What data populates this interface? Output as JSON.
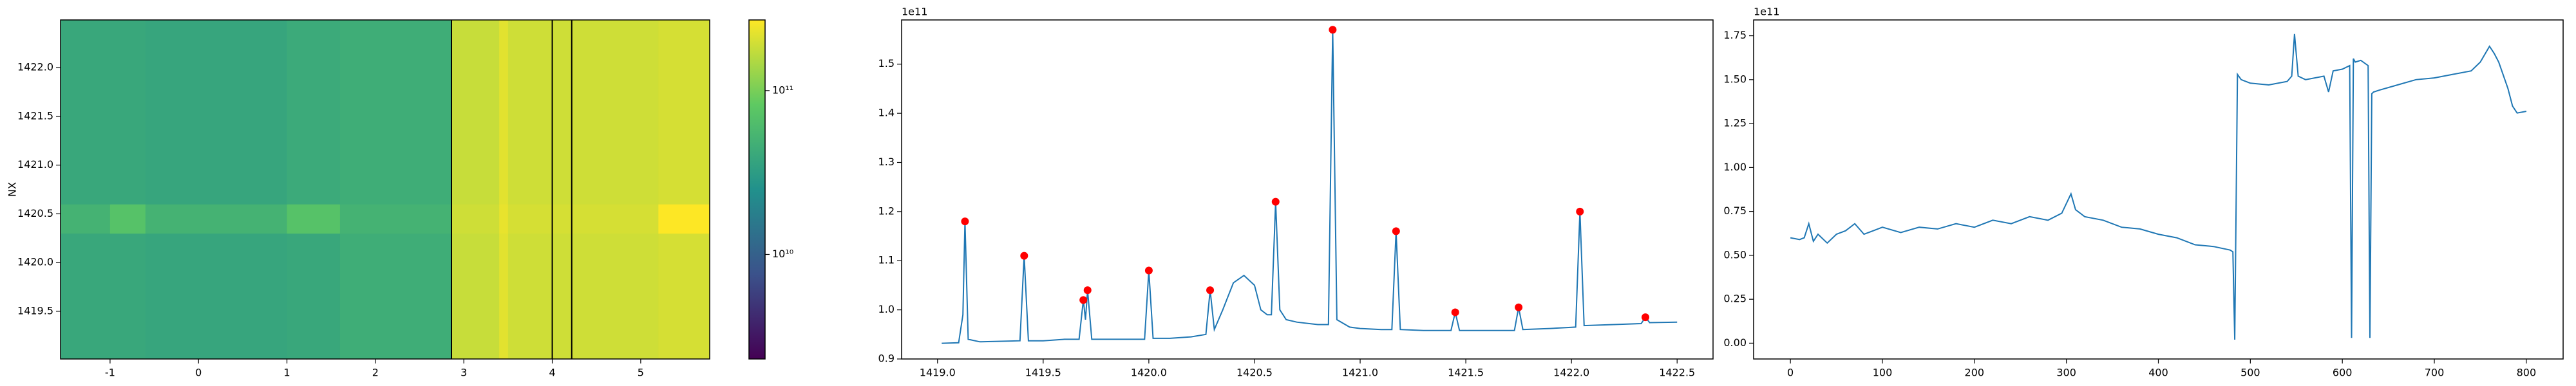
{
  "chart_data": [
    {
      "type": "heatmap",
      "ylabel": "NX",
      "colormap": "viridis",
      "log_color": true,
      "x_edges": [
        -1.56,
        -1.0,
        -0.6,
        1.0,
        1.6,
        2.86,
        3.4,
        3.5,
        5.2,
        5.78
      ],
      "y_edges": [
        1419.01,
        1420.3,
        1420.6,
        1422.49
      ],
      "z": [
        [
          40000000000.0,
          40000000000.0,
          38000000000.0,
          40000000000.0,
          45000000000.0,
          180000000000.0,
          220000000000.0,
          190000000000.0,
          200000000000.0
        ],
        [
          50000000000.0,
          70000000000.0,
          50000000000.0,
          70000000000.0,
          50000000000.0,
          190000000000.0,
          230000000000.0,
          200000000000.0,
          300000000000.0
        ],
        [
          40000000000.0,
          40000000000.0,
          38000000000.0,
          42000000000.0,
          45000000000.0,
          180000000000.0,
          220000000000.0,
          190000000000.0,
          200000000000.0
        ]
      ],
      "vlines": [
        2.86,
        4.0,
        4.22
      ],
      "xlim": [
        -1.56,
        5.78
      ],
      "ylim": [
        1419.01,
        1422.49
      ],
      "xticks": [
        -1,
        0,
        1,
        2,
        3,
        4,
        5
      ],
      "yticks": [
        1419.5,
        {
          "value": 1420.0,
          "label": "1420.0"
        },
        1420.5,
        {
          "value": 1421.0,
          "label": "1421.0"
        },
        1421.5,
        {
          "value": 1422.0,
          "label": "1422.0"
        }
      ],
      "clim": [
        2300000000.0,
        270000000000.0
      ],
      "cticks": [
        {
          "value": 10000000000.0,
          "label": "10¹⁰"
        },
        {
          "value": 100000000000.0,
          "label": "10¹¹"
        }
      ]
    },
    {
      "type": "line",
      "offset_label": "1e11",
      "x": [
        1419.02,
        1419.1,
        1419.12,
        1419.13,
        1419.145,
        1419.2,
        1419.3,
        1419.39,
        1419.41,
        1419.43,
        1419.5,
        1419.6,
        1419.67,
        1419.69,
        1419.7,
        1419.71,
        1419.73,
        1419.8,
        1419.9,
        1419.98,
        1420.0,
        1420.02,
        1420.1,
        1420.2,
        1420.27,
        1420.29,
        1420.31,
        1420.35,
        1420.4,
        1420.45,
        1420.5,
        1420.53,
        1420.56,
        1420.58,
        1420.6,
        1420.62,
        1420.65,
        1420.7,
        1420.8,
        1420.85,
        1420.87,
        1420.89,
        1420.95,
        1421.0,
        1421.1,
        1421.15,
        1421.17,
        1421.19,
        1421.3,
        1421.43,
        1421.45,
        1421.47,
        1421.6,
        1421.73,
        1421.75,
        1421.77,
        1421.9,
        1422.02,
        1422.04,
        1422.06,
        1422.2,
        1422.33,
        1422.35,
        1422.37,
        1422.5
      ],
      "series": [
        {
          "color": "#1f77b4",
          "values": [
            0.932,
            0.933,
            0.99,
            1.18,
            0.94,
            0.935,
            0.936,
            0.937,
            1.11,
            0.937,
            0.937,
            0.94,
            0.94,
            1.02,
            0.98,
            1.04,
            0.94,
            0.94,
            0.94,
            0.94,
            1.08,
            0.942,
            0.942,
            0.945,
            0.95,
            1.04,
            0.96,
            1.0,
            1.055,
            1.07,
            1.05,
            1.0,
            0.99,
            0.99,
            1.22,
            1.0,
            0.98,
            0.975,
            0.97,
            0.97,
            1.57,
            0.98,
            0.965,
            0.962,
            0.96,
            0.96,
            1.16,
            0.96,
            0.958,
            0.958,
            0.995,
            0.958,
            0.958,
            0.958,
            1.005,
            0.96,
            0.962,
            0.965,
            1.2,
            0.968,
            0.97,
            0.972,
            0.985,
            0.974,
            0.975
          ]
        }
      ],
      "peaks": {
        "color": "red",
        "x": [
          1419.13,
          1419.41,
          1419.69,
          1419.71,
          1420.0,
          1420.29,
          1420.6,
          1420.87,
          1421.17,
          1421.45,
          1421.75,
          1422.04,
          1422.35
        ],
        "values": [
          1.18,
          1.11,
          1.02,
          1.04,
          1.08,
          1.04,
          1.22,
          1.57,
          1.16,
          0.995,
          1.005,
          1.2,
          0.985
        ]
      },
      "xlim": [
        1418.83,
        1422.67
      ],
      "ylim": [
        0.9,
        1.59
      ],
      "xticks": [
        {
          "value": 1419.0,
          "label": "1419.0"
        },
        1419.5,
        {
          "value": 1420.0,
          "label": "1420.0"
        },
        1420.5,
        {
          "value": 1421.0,
          "label": "1421.0"
        },
        1421.5,
        {
          "value": 1422.0,
          "label": "1422.0"
        },
        1422.5
      ],
      "yticks": [
        0.9,
        {
          "value": 1.0,
          "label": "1.0"
        },
        1.1,
        1.2,
        1.3,
        1.4,
        1.5
      ]
    },
    {
      "type": "line",
      "offset_label": "1e11",
      "x": [
        0,
        10,
        15,
        20,
        25,
        30,
        40,
        50,
        60,
        70,
        80,
        90,
        100,
        120,
        140,
        160,
        180,
        200,
        220,
        240,
        260,
        280,
        295,
        305,
        310,
        320,
        340,
        360,
        380,
        400,
        420,
        440,
        460,
        478,
        481,
        483,
        486,
        490,
        500,
        520,
        540,
        545,
        548,
        552,
        560,
        580,
        585,
        590,
        600,
        608,
        610,
        612,
        614,
        620,
        628,
        630,
        632,
        634,
        640,
        660,
        680,
        700,
        720,
        740,
        750,
        760,
        765,
        770,
        780,
        785,
        790,
        800
      ],
      "series": [
        {
          "color": "#1f77b4",
          "values": [
            0.6,
            0.59,
            0.6,
            0.68,
            0.58,
            0.62,
            0.57,
            0.62,
            0.64,
            0.68,
            0.62,
            0.64,
            0.66,
            0.63,
            0.66,
            0.65,
            0.68,
            0.66,
            0.7,
            0.68,
            0.72,
            0.7,
            0.74,
            0.85,
            0.76,
            0.72,
            0.7,
            0.66,
            0.65,
            0.62,
            0.6,
            0.56,
            0.55,
            0.53,
            0.52,
            0.02,
            1.53,
            1.5,
            1.48,
            1.47,
            1.49,
            1.52,
            1.76,
            1.52,
            1.5,
            1.52,
            1.43,
            1.55,
            1.56,
            1.58,
            0.03,
            1.62,
            1.6,
            1.61,
            1.58,
            0.03,
            1.42,
            1.43,
            1.44,
            1.47,
            1.5,
            1.51,
            1.53,
            1.55,
            1.6,
            1.69,
            1.65,
            1.6,
            1.45,
            1.35,
            1.31,
            1.32
          ]
        }
      ],
      "xlim": [
        -40,
        840
      ],
      "ylim": [
        -0.09,
        1.84
      ],
      "xticks": [
        0,
        100,
        200,
        300,
        400,
        500,
        600,
        700,
        800
      ],
      "yticks": [
        {
          "value": 0,
          "label": "0.00"
        },
        0.25,
        {
          "value": 0.5,
          "label": "0.50"
        },
        0.75,
        {
          "value": 1,
          "label": "1.00"
        },
        1.25,
        {
          "value": 1.5,
          "label": "1.50"
        },
        1.75
      ]
    }
  ]
}
